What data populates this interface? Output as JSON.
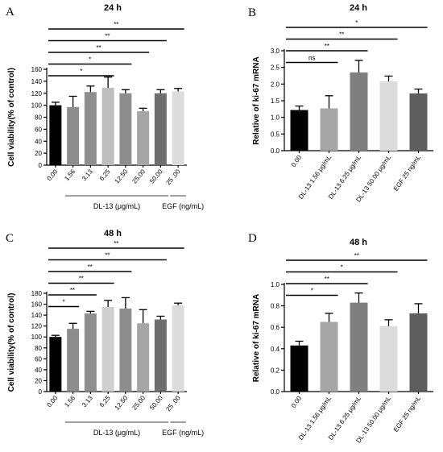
{
  "chart_data": [
    {
      "panel": "A",
      "type": "bar",
      "title": "24 h",
      "ylabel": "Cell viability(% of control)",
      "ylim": [
        0,
        160
      ],
      "yticks": [
        0,
        20,
        40,
        60,
        80,
        100,
        120,
        140,
        160
      ],
      "categories": [
        "0.00",
        "1.56",
        "3.13",
        "6.25",
        "12.50",
        "25.00",
        "50.00",
        "25 .00"
      ],
      "values": [
        100,
        97,
        122,
        129,
        120,
        90,
        120,
        123
      ],
      "errors": [
        5,
        18,
        10,
        18,
        6,
        5,
        6,
        5
      ],
      "colors": [
        "#000000",
        "#8e8e8e",
        "#8e8e8e",
        "#bdbdbd",
        "#8e8e8e",
        "#a6a6a6",
        "#6e6e6e",
        "#dcdcdc"
      ],
      "groups": [
        {
          "label": "DL-13 (μg/mL)",
          "from": 1,
          "to": 6
        },
        {
          "label": "EGF (ng/mL)",
          "from": 7,
          "to": 7
        }
      ],
      "significance": [
        {
          "from": 0,
          "to": 3,
          "label": "*"
        },
        {
          "from": 0,
          "to": 4,
          "label": "*"
        },
        {
          "from": 0,
          "to": 5,
          "label": "**"
        },
        {
          "from": 0,
          "to": 6,
          "label": "**"
        },
        {
          "from": 0,
          "to": 7,
          "label": "**"
        }
      ]
    },
    {
      "panel": "B",
      "type": "bar",
      "title": "24 h",
      "ylabel": "Relative of ki-67 mRNA",
      "ylim": [
        0,
        3.0
      ],
      "yticks": [
        0.0,
        0.5,
        1.0,
        1.5,
        2.0,
        2.5,
        3.0
      ],
      "ytick_labels": [
        "0.0",
        "0.5",
        "1.0",
        "1.5",
        "2.0",
        "2.5",
        "3.0"
      ],
      "categories": [
        "0.00",
        "DL-13 1.56 μg/mL",
        "DL-13 6.25 μg/mL",
        "DL-13 50.00 μg/mL",
        "EGF 25 ng/mL"
      ],
      "values": [
        1.22,
        1.27,
        2.35,
        2.08,
        1.72
      ],
      "errors": [
        0.12,
        0.38,
        0.36,
        0.16,
        0.13
      ],
      "colors": [
        "#000000",
        "#a6a6a6",
        "#7f7f7f",
        "#dcdcdc",
        "#5e5e5e"
      ],
      "significance": [
        {
          "from": 0,
          "to": 1,
          "label": "ns"
        },
        {
          "from": 0,
          "to": 2,
          "label": "**"
        },
        {
          "from": 0,
          "to": 3,
          "label": "**"
        },
        {
          "from": 0,
          "to": 4,
          "label": "*"
        }
      ]
    },
    {
      "panel": "C",
      "type": "bar",
      "title": "48 h",
      "ylabel": "Cell viability(% of control)",
      "ylim": [
        0,
        180
      ],
      "yticks": [
        0,
        20,
        40,
        60,
        80,
        100,
        120,
        140,
        160,
        180
      ],
      "categories": [
        "0.00",
        "1.56",
        "3.13",
        "6.25",
        "12.50",
        "25.00",
        "50.00",
        "25 .00"
      ],
      "values": [
        100,
        115,
        143,
        155,
        152,
        125,
        132,
        158
      ],
      "errors": [
        3,
        10,
        4,
        12,
        20,
        25,
        6,
        4
      ],
      "colors": [
        "#000000",
        "#8e8e8e",
        "#8e8e8e",
        "#cfcfcf",
        "#8e8e8e",
        "#a6a6a6",
        "#6e6e6e",
        "#dcdcdc"
      ],
      "groups": [
        {
          "label": "DL-13 (μg/mL)",
          "from": 1,
          "to": 6
        },
        {
          "label": "EGF (ng/mL)",
          "from": 7,
          "to": 7
        }
      ],
      "significance": [
        {
          "from": 0,
          "to": 1,
          "label": "*"
        },
        {
          "from": 0,
          "to": 2,
          "label": "**"
        },
        {
          "from": 0,
          "to": 3,
          "label": "**"
        },
        {
          "from": 0,
          "to": 4,
          "label": "**"
        },
        {
          "from": 0,
          "to": 6,
          "label": "**"
        },
        {
          "from": 0,
          "to": 7,
          "label": "**"
        }
      ]
    },
    {
      "panel": "D",
      "type": "bar",
      "title": "48 h",
      "ylabel": "Relative of ki-67 mRNA",
      "ylim": [
        0,
        1.0
      ],
      "yticks": [
        0.0,
        0.2,
        0.4,
        0.6,
        0.8,
        1.0
      ],
      "ytick_labels": [
        "0.0",
        "0.2",
        "0.4",
        "0.6",
        "0.8",
        "1.0"
      ],
      "categories": [
        "0.00",
        "DL-13 1.56 μg/mL",
        "DL-13 6.25 μg/mL",
        "DL-13 50.00 μg/mL",
        "EGF 25 ng/mL"
      ],
      "values": [
        0.43,
        0.65,
        0.83,
        0.61,
        0.73
      ],
      "errors": [
        0.04,
        0.08,
        0.09,
        0.06,
        0.09
      ],
      "colors": [
        "#000000",
        "#a6a6a6",
        "#7f7f7f",
        "#dcdcdc",
        "#5e5e5e"
      ],
      "significance": [
        {
          "from": 0,
          "to": 1,
          "label": "*"
        },
        {
          "from": 0,
          "to": 2,
          "label": "**"
        },
        {
          "from": 0,
          "to": 3,
          "label": "*"
        },
        {
          "from": 0,
          "to": 4,
          "label": "**"
        }
      ]
    }
  ]
}
